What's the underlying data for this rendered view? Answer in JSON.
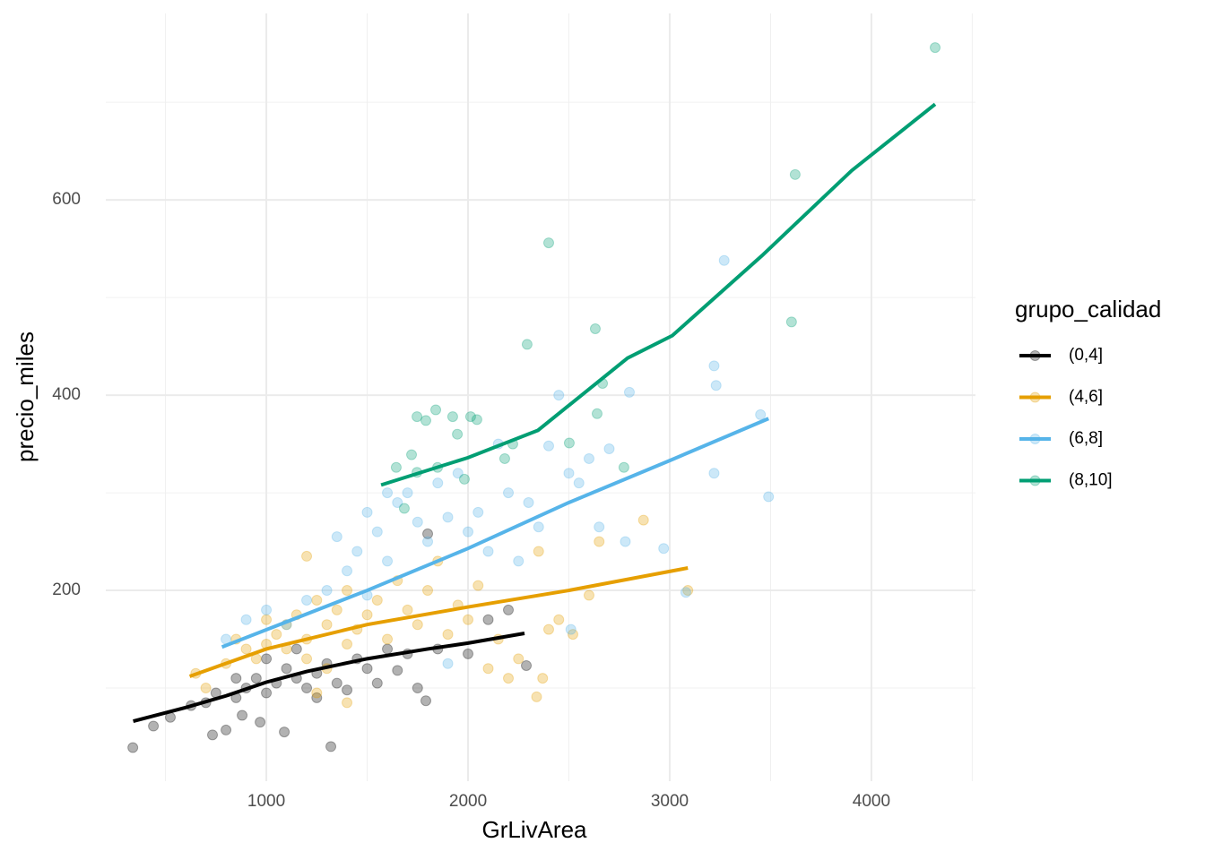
{
  "chart_data": {
    "type": "scatter",
    "x_label": "GrLivArea",
    "y_label": "precio_miles",
    "legend_title": "grupo_calidad",
    "legend": "right",
    "grid": true,
    "xlim": [
      204,
      4516
    ],
    "ylim": [
      4.6,
      791
    ],
    "xticks": [
      1000,
      2000,
      3000,
      4000
    ],
    "yticks": [
      200,
      400,
      600
    ],
    "xminor": [
      500,
      1500,
      2500,
      3500,
      4500
    ],
    "yminor": [
      100,
      300,
      500,
      700
    ],
    "series": [
      {
        "name": "(0,4]",
        "color": "#000000",
        "x": [
          338,
          440,
          524,
          627,
          733,
          800,
          880,
          969,
          1089,
          1320,
          1791,
          2289,
          700,
          750,
          850,
          900,
          950,
          1000,
          1050,
          1100,
          1150,
          1200,
          1250,
          1300,
          1350,
          1400,
          1450,
          1500,
          1550,
          1600,
          1650,
          1700,
          1750,
          1800,
          1850,
          2000,
          2100,
          2200,
          1000,
          850,
          1150,
          1250
        ],
        "y": [
          39,
          61,
          70,
          82,
          52,
          57,
          72,
          65,
          55,
          40,
          87,
          123,
          85,
          95,
          90,
          100,
          110,
          95,
          105,
          120,
          110,
          100,
          115,
          125,
          105,
          98,
          130,
          120,
          105,
          140,
          118,
          135,
          100,
          258,
          140,
          135,
          170,
          180,
          130,
          110,
          140,
          90
        ],
        "smooth_x": [
          340,
          600,
          800,
          1000,
          1200,
          1500,
          1800,
          2000,
          2280
        ],
        "smooth_y": [
          66,
          80,
          92,
          106,
          117,
          130,
          140,
          146,
          156
        ]
      },
      {
        "name": "(4,6]",
        "color": "#E69F00",
        "x": [
          650,
          700,
          800,
          850,
          900,
          950,
          1000,
          1000,
          1050,
          1100,
          1100,
          1150,
          1200,
          1200,
          1250,
          1300,
          1300,
          1350,
          1400,
          1400,
          1450,
          1500,
          1550,
          1600,
          1650,
          1700,
          1750,
          1800,
          1850,
          1900,
          1950,
          2000,
          2050,
          2100,
          2150,
          2200,
          2250,
          2350,
          2400,
          2450,
          2520,
          2600,
          2650,
          2870,
          3090,
          1250,
          1400,
          2340,
          2370,
          1200
        ],
        "y": [
          115,
          100,
          125,
          150,
          140,
          130,
          145,
          170,
          155,
          140,
          165,
          175,
          150,
          130,
          190,
          165,
          120,
          180,
          200,
          145,
          160,
          175,
          190,
          150,
          210,
          180,
          165,
          200,
          230,
          155,
          185,
          170,
          205,
          120,
          150,
          110,
          130,
          240,
          160,
          170,
          155,
          195,
          250,
          272,
          200,
          95,
          85,
          91,
          110,
          235
        ],
        "smooth_x": [
          620,
          1000,
          1500,
          2000,
          2500,
          3090
        ],
        "smooth_y": [
          112,
          140,
          165,
          183,
          200,
          223
        ]
      },
      {
        "name": "(6,8]",
        "color": "#56B4E9",
        "x": [
          800,
          900,
          1000,
          1100,
          1200,
          1300,
          1350,
          1400,
          1450,
          1500,
          1550,
          1600,
          1650,
          1700,
          1750,
          1800,
          1850,
          1900,
          1950,
          2000,
          2050,
          2100,
          2150,
          2200,
          2250,
          2300,
          2350,
          2400,
          2450,
          2500,
          2550,
          2600,
          2650,
          2700,
          2780,
          2800,
          2970,
          3220,
          3230,
          3220,
          3270,
          3450,
          3490,
          3080,
          2510,
          1900,
          1600,
          1500
        ],
        "y": [
          150,
          170,
          180,
          165,
          190,
          200,
          255,
          220,
          240,
          280,
          260,
          230,
          290,
          300,
          270,
          250,
          310,
          275,
          320,
          260,
          280,
          240,
          350,
          300,
          230,
          290,
          265,
          348,
          400,
          320,
          310,
          335,
          265,
          345,
          250,
          403,
          243,
          430,
          410,
          320,
          538,
          380,
          296,
          198,
          160,
          125,
          300,
          195
        ],
        "smooth_x": [
          780,
          1500,
          2000,
          2500,
          3000,
          3490
        ],
        "smooth_y": [
          142,
          200,
          243,
          290,
          333,
          376
        ]
      },
      {
        "name": "(8,10]",
        "color": "#009E73",
        "x": [
          2400,
          2293,
          2631,
          2667,
          2640,
          2773,
          3622,
          3604,
          4316,
          1747,
          1791,
          1840,
          1924,
          2013,
          2044,
          1947,
          1720,
          1644,
          1747,
          1849,
          1982,
          2222,
          2182,
          2502,
          1684
        ],
        "y": [
          556,
          452,
          468,
          412,
          381,
          326,
          626,
          475,
          756,
          378,
          374,
          385,
          378,
          378,
          375,
          360,
          339,
          326,
          321,
          326,
          314,
          350,
          335,
          351,
          284
        ],
        "smooth_x": [
          1569,
          2000,
          2347,
          2791,
          3013,
          3458,
          3902,
          4316
        ],
        "smooth_y": [
          308,
          336,
          364,
          438,
          461,
          543,
          630,
          698
        ]
      }
    ]
  }
}
